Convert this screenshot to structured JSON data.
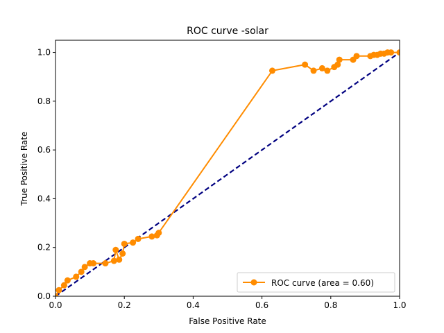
{
  "chart_data": {
    "type": "line",
    "title": "ROC curve -solar",
    "xlabel": "False Positive Rate",
    "ylabel": "True Positive Rate",
    "xlim": [
      0.0,
      1.0
    ],
    "ylim": [
      0.0,
      1.05
    ],
    "x_ticks": [
      0.0,
      0.2,
      0.4,
      0.6,
      0.8,
      1.0
    ],
    "y_ticks": [
      0.0,
      0.2,
      0.4,
      0.6,
      0.8,
      1.0
    ],
    "x_tick_labels": [
      "0.0",
      "0.2",
      "0.4",
      "0.6",
      "0.8",
      "1.0"
    ],
    "y_tick_labels": [
      "0.0",
      "0.2",
      "0.4",
      "0.6",
      "0.8",
      "1.0"
    ],
    "grid": false,
    "legend_position": "lower-right",
    "series": [
      {
        "name": "ROC curve (area = 0.60)",
        "color": "#ff8c00",
        "marker": "circle",
        "x": [
          0.0,
          0.01,
          0.025,
          0.035,
          0.06,
          0.075,
          0.085,
          0.1,
          0.11,
          0.145,
          0.17,
          0.175,
          0.185,
          0.195,
          0.2,
          0.225,
          0.24,
          0.28,
          0.295,
          0.3,
          0.63,
          0.725,
          0.75,
          0.775,
          0.79,
          0.81,
          0.82,
          0.825,
          0.865,
          0.875,
          0.915,
          0.925,
          0.935,
          0.945,
          0.955,
          0.965,
          0.975,
          1.0
        ],
        "y": [
          0.0,
          0.025,
          0.045,
          0.065,
          0.08,
          0.1,
          0.12,
          0.135,
          0.135,
          0.135,
          0.145,
          0.19,
          0.15,
          0.175,
          0.215,
          0.22,
          0.235,
          0.245,
          0.25,
          0.26,
          0.925,
          0.95,
          0.925,
          0.935,
          0.925,
          0.94,
          0.95,
          0.97,
          0.97,
          0.985,
          0.985,
          0.99,
          0.99,
          0.995,
          0.995,
          1.0,
          1.0,
          1.0
        ]
      },
      {
        "name": "",
        "color": "#000080",
        "style": "dashed",
        "x": [
          0.0,
          1.0
        ],
        "y": [
          0.0,
          1.0
        ]
      }
    ]
  }
}
